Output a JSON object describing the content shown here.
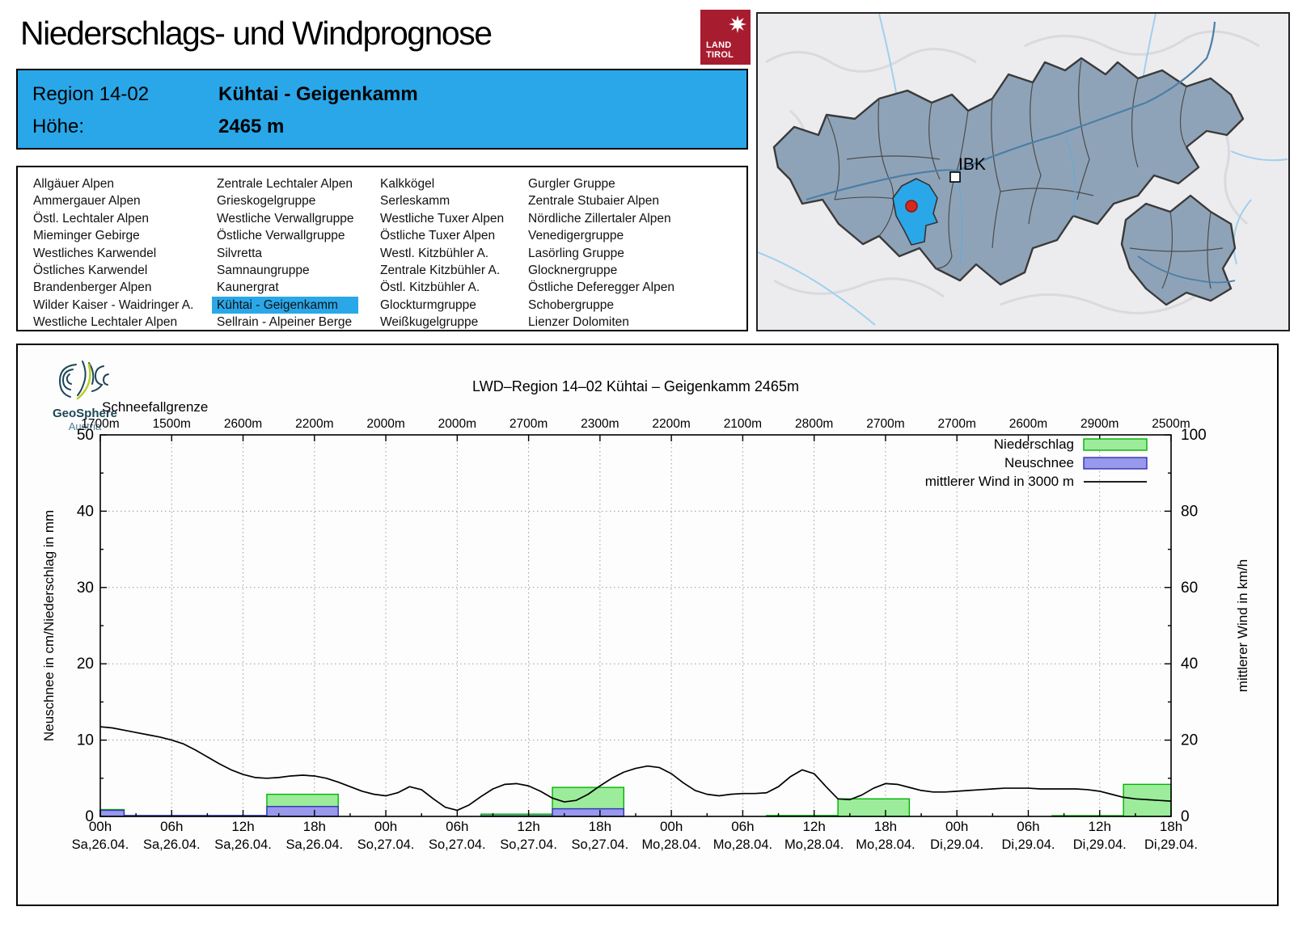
{
  "header": {
    "title": "Niederschlags- und Windprognose",
    "logo": {
      "line1": "LAND",
      "line2": "TIROL"
    }
  },
  "info_box": {
    "region_label": "Region 14-02",
    "region_name": "Kühtai - Geigenkamm",
    "altitude_label": "Höhe:",
    "altitude_value": "2465 m"
  },
  "region_list": {
    "selected": "Kühtai - Geigenkamm",
    "columns": [
      [
        "Allgäuer Alpen",
        "Ammergauer Alpen",
        "Östl. Lechtaler Alpen",
        "Mieminger Gebirge",
        "Westliches Karwendel",
        "Östliches Karwendel",
        "Brandenberger Alpen",
        "Wilder Kaiser - Waidringer A.",
        "Westliche Lechtaler Alpen"
      ],
      [
        "Zentrale Lechtaler Alpen",
        "Grieskogelgruppe",
        "Westliche Verwallgruppe",
        "Östliche Verwallgruppe",
        "Silvretta",
        "Samnaungruppe",
        "Kaunergrat",
        "Kühtai - Geigenkamm",
        "Sellrain - Alpeiner Berge"
      ],
      [
        "Kalkkögel",
        "Serleskamm",
        "Westliche Tuxer Alpen",
        "Östliche Tuxer Alpen",
        "Westl. Kitzbühler A.",
        "Zentrale Kitzbühler A.",
        "Östl. Kitzbühler A.",
        "Glockturmgruppe",
        "Weißkugelgruppe"
      ],
      [
        "Gurgler Gruppe",
        "Zentrale Stubaier Alpen",
        "Nördliche Zillertaler Alpen",
        "Venedigergruppe",
        "Lasörling Gruppe",
        "Glocknergruppe",
        "Östliche Deferegger Alpen",
        "Schobergruppe",
        "Lienzer Dolomiten"
      ]
    ]
  },
  "map": {
    "city_label": "IBK"
  },
  "branding": {
    "geosphere_line1": "GeoSphere",
    "geosphere_line2": "Austria"
  },
  "chart_data": {
    "type": "bar",
    "title": "LWD–Region 14–02 Kühtai – Geigenkamm 2465m",
    "snowline_label": "Schneefallgrenze",
    "snowline_values": [
      "1700m",
      "1500m",
      "2600m",
      "2200m",
      "2000m",
      "2000m",
      "2700m",
      "2300m",
      "2200m",
      "2100m",
      "2800m",
      "2700m",
      "2700m",
      "2600m",
      "2900m",
      "2500m"
    ],
    "ylabel_left": "Neuschnee in cm/Niederschlag in mm",
    "ylabel_right": "mittlerer Wind in km/h",
    "ylim_left": [
      0,
      50
    ],
    "ylim_right": [
      0,
      100
    ],
    "x_hours_range": [
      0,
      90
    ],
    "grid": true,
    "legend_position": "top-right",
    "legend": [
      {
        "label": "Niederschlag",
        "type": "box",
        "fill": "#9CEC9C",
        "border": "#00B400"
      },
      {
        "label": "Neuschnee",
        "type": "box",
        "fill": "#9898EC",
        "border": "#3333B4"
      },
      {
        "label": "mittlerer Wind in 3000 m",
        "type": "line",
        "color": "#000000"
      }
    ],
    "hour_ticks": [
      {
        "hour": 0,
        "label": "00h",
        "date": "Sa,26.04."
      },
      {
        "hour": 6,
        "label": "06h",
        "date": "Sa,26.04."
      },
      {
        "hour": 12,
        "label": "12h",
        "date": "Sa,26.04."
      },
      {
        "hour": 18,
        "label": "18h",
        "date": "Sa,26.04."
      },
      {
        "hour": 24,
        "label": "00h",
        "date": "So,27.04."
      },
      {
        "hour": 30,
        "label": "06h",
        "date": "So,27.04."
      },
      {
        "hour": 36,
        "label": "12h",
        "date": "So,27.04."
      },
      {
        "hour": 42,
        "label": "18h",
        "date": "So,27.04."
      },
      {
        "hour": 48,
        "label": "00h",
        "date": "Mo,28.04."
      },
      {
        "hour": 54,
        "label": "06h",
        "date": "Mo,28.04."
      },
      {
        "hour": 60,
        "label": "12h",
        "date": "Mo,28.04."
      },
      {
        "hour": 66,
        "label": "18h",
        "date": "Mo,28.04."
      },
      {
        "hour": 72,
        "label": "00h",
        "date": "Di,29.04."
      },
      {
        "hour": 78,
        "label": "06h",
        "date": "Di,29.04."
      },
      {
        "hour": 84,
        "label": "12h",
        "date": "Di,29.04."
      },
      {
        "hour": 90,
        "label": "18h",
        "date": "Di,29.04."
      }
    ],
    "bars": [
      {
        "start": 0,
        "end": 2,
        "niederschlag_mm": 0.9,
        "neuschnee_cm": 0.8
      },
      {
        "start": 2,
        "end": 14,
        "niederschlag_mm": 0,
        "neuschnee_cm": 0.12
      },
      {
        "start": 14,
        "end": 20,
        "niederschlag_mm": 2.9,
        "neuschnee_cm": 1.3
      },
      {
        "start": 32,
        "end": 38,
        "niederschlag_mm": 0.3,
        "neuschnee_cm": 0.08
      },
      {
        "start": 38,
        "end": 44,
        "niederschlag_mm": 3.8,
        "neuschnee_cm": 1.0
      },
      {
        "start": 56,
        "end": 62,
        "niederschlag_mm": 0.12,
        "neuschnee_cm": 0
      },
      {
        "start": 62,
        "end": 68,
        "niederschlag_mm": 2.3,
        "neuschnee_cm": 0
      },
      {
        "start": 80,
        "end": 86,
        "niederschlag_mm": 0.1,
        "neuschnee_cm": 0
      },
      {
        "start": 86,
        "end": 90,
        "niederschlag_mm": 4.2,
        "neuschnee_cm": 0
      }
    ],
    "wind_kmh": {
      "hours": [
        0,
        1,
        2,
        3,
        4,
        5,
        6,
        7,
        8,
        9,
        10,
        11,
        12,
        13,
        14,
        15,
        16,
        17,
        18,
        19,
        20,
        21,
        22,
        23,
        24,
        25,
        26,
        27,
        28,
        29,
        30,
        31,
        32,
        33,
        34,
        35,
        36,
        37,
        38,
        39,
        40,
        41,
        42,
        43,
        44,
        45,
        46,
        47,
        48,
        49,
        50,
        51,
        52,
        53,
        54,
        55,
        56,
        57,
        58,
        59,
        60,
        61,
        62,
        63,
        64,
        65,
        66,
        67,
        68,
        69,
        70,
        71,
        72,
        73,
        74,
        75,
        76,
        77,
        78,
        79,
        80,
        81,
        82,
        83,
        84,
        85,
        86,
        87,
        88,
        89,
        90
      ],
      "values": [
        23.5,
        23.2,
        22.6,
        22.0,
        21.4,
        20.8,
        20.0,
        19.0,
        17.4,
        15.6,
        13.8,
        12.2,
        11.0,
        10.2,
        10.0,
        10.2,
        10.6,
        10.8,
        10.6,
        10.0,
        9.0,
        7.8,
        6.6,
        5.8,
        5.4,
        6.2,
        7.8,
        7.0,
        4.6,
        2.4,
        1.6,
        3.0,
        5.2,
        7.2,
        8.4,
        8.6,
        8.0,
        6.6,
        4.8,
        3.8,
        4.2,
        5.8,
        8.0,
        10.0,
        11.6,
        12.6,
        13.2,
        12.8,
        11.2,
        8.8,
        6.8,
        5.8,
        5.4,
        5.8,
        6.0,
        6.0,
        6.2,
        7.8,
        10.4,
        12.2,
        11.2,
        7.8,
        4.6,
        4.4,
        5.6,
        7.4,
        8.6,
        8.4,
        7.6,
        6.8,
        6.4,
        6.4,
        6.6,
        6.8,
        7.0,
        7.2,
        7.4,
        7.4,
        7.4,
        7.2,
        7.2,
        7.2,
        7.2,
        7.0,
        6.6,
        5.8,
        5.0,
        4.6,
        4.4,
        4.2,
        4.0
      ]
    },
    "colors": {
      "niederschlag_fill": "#9CEC9C",
      "niederschlag_border": "#00B400",
      "neuschnee_fill": "#9898EC",
      "neuschnee_border": "#3333B4",
      "wind": "#000000",
      "highlight_blue": "#2AA7E8"
    }
  }
}
